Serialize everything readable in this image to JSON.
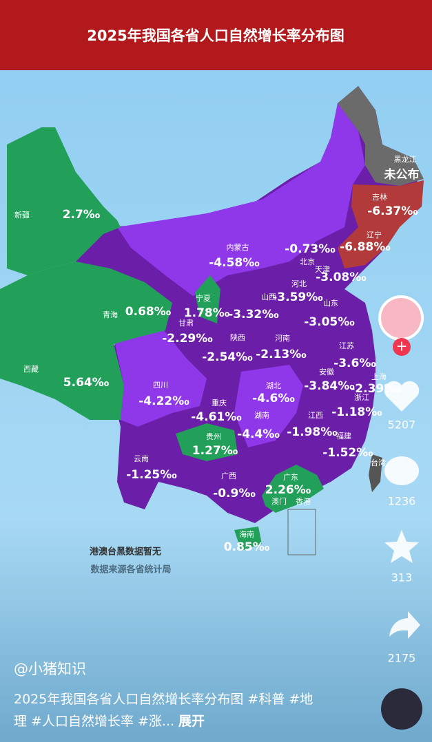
{
  "header": {
    "title": "2025年我国各省人口自然增长率分布图"
  },
  "map": {
    "regions": [
      {
        "name": "新疆",
        "value": "2.7‰"
      },
      {
        "name": "西藏",
        "value": "5.64‰"
      },
      {
        "name": "青海",
        "value": "0.68‰"
      },
      {
        "name": "甘肃",
        "value": "-2.29‰"
      },
      {
        "name": "宁夏",
        "value": "1.78‰"
      },
      {
        "name": "内蒙古",
        "value": "-4.58‰"
      },
      {
        "name": "四川",
        "value": "-4.22‰"
      },
      {
        "name": "云南",
        "value": "-1.25‰"
      },
      {
        "name": "贵州",
        "value": "1.27‰"
      },
      {
        "name": "重庆",
        "value": "-4.61‰"
      },
      {
        "name": "陕西",
        "value": "-2.54‰"
      },
      {
        "name": "山西",
        "value": "-3.32‰"
      },
      {
        "name": "河南",
        "value": "-2.13‰"
      },
      {
        "name": "湖北",
        "value": "-4.6‰"
      },
      {
        "name": "湖南",
        "value": "-4.4‰"
      },
      {
        "name": "广西",
        "value": "-0.9‰"
      },
      {
        "name": "广东",
        "value": "2.26‰"
      },
      {
        "name": "海南",
        "value": "0.85‰"
      },
      {
        "name": "江西",
        "value": "-1.98‰"
      },
      {
        "name": "福建",
        "value": "-1.52‰"
      },
      {
        "name": "浙江",
        "value": "-1.18‰"
      },
      {
        "name": "安徽",
        "value": "-3.84‰"
      },
      {
        "name": "江苏",
        "value": "-3.6‰"
      },
      {
        "name": "上海",
        "value": "-2.39‰"
      },
      {
        "name": "山东",
        "value": "-3.05‰"
      },
      {
        "name": "河北",
        "value": "-3.59‰"
      },
      {
        "name": "北京",
        "value": "-0.73‰"
      },
      {
        "name": "天津",
        "value": "-3.08‰"
      },
      {
        "name": "辽宁",
        "value": "-6.88‰"
      },
      {
        "name": "吉林",
        "value": "-6.37‰"
      },
      {
        "name": "黑龙江",
        "value": "未公布"
      }
    ],
    "small_labels": [
      "台湾",
      "澳门",
      "香港"
    ],
    "notes": [
      "港澳台黑数据暂无",
      "数据来源各省统计局"
    ]
  },
  "sidebar": {
    "likes": "5207",
    "comments": "1236",
    "favorites": "313",
    "shares": "2175"
  },
  "post": {
    "author": "@小猪知识",
    "caption": "2025年我国各省人口自然增长率分布图 #科普 #地理 #人口自然增长率 #涨...",
    "expand": "展开"
  }
}
